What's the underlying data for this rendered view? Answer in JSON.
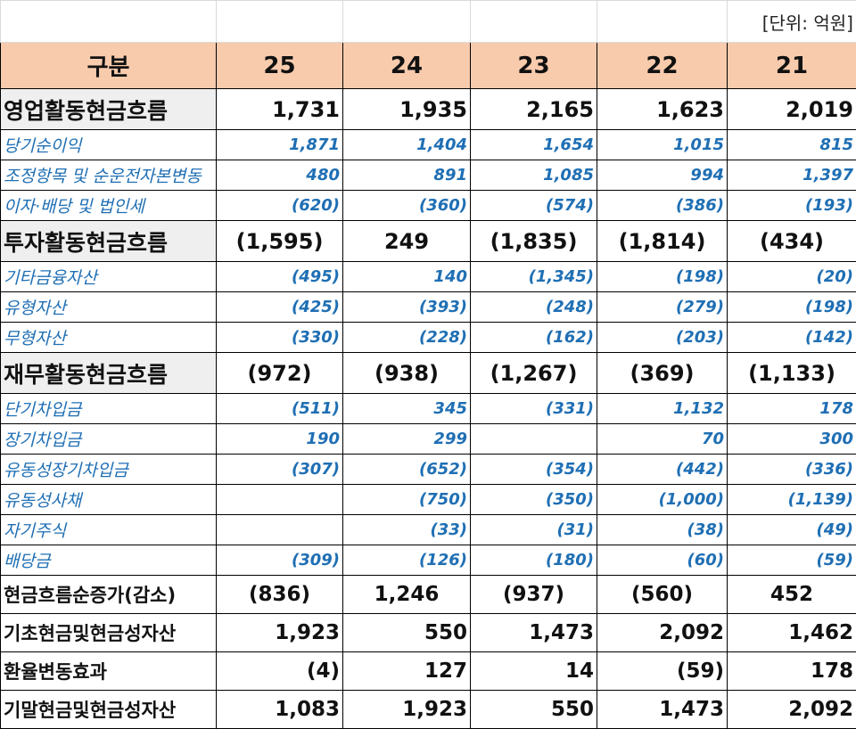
{
  "unit_label": "[단위: 억원]",
  "header": {
    "label": "구분",
    "years": [
      "25",
      "24",
      "23",
      "22",
      "21"
    ]
  },
  "rows": [
    {
      "kind": "major",
      "label": "영업활동현금흐름",
      "values": [
        "1,731",
        "1,935",
        "2,165",
        "1,623",
        "2,019"
      ],
      "neg": [
        false,
        false,
        false,
        false,
        false
      ]
    },
    {
      "kind": "minor",
      "label": "당기순이익",
      "values": [
        "1,871",
        "1,404",
        "1,654",
        "1,015",
        "815"
      ]
    },
    {
      "kind": "minor",
      "label": "조정항목 및 순운전자본변동",
      "values": [
        "480",
        "891",
        "1,085",
        "994",
        "1,397"
      ]
    },
    {
      "kind": "minor",
      "label": "이자·배당 및 법인세",
      "values": [
        "(620)",
        "(360)",
        "(574)",
        "(386)",
        "(193)"
      ]
    },
    {
      "kind": "major",
      "label": "투자활동현금흐름",
      "values": [
        "(1,595)",
        "249",
        "(1,835)",
        "(1,814)",
        "(434)"
      ],
      "neg": [
        true,
        false,
        true,
        true,
        true
      ]
    },
    {
      "kind": "minor",
      "label": "기타금융자산",
      "values": [
        "(495)",
        "140",
        "(1,345)",
        "(198)",
        "(20)"
      ]
    },
    {
      "kind": "minor",
      "label": "유형자산",
      "values": [
        "(425)",
        "(393)",
        "(248)",
        "(279)",
        "(198)"
      ]
    },
    {
      "kind": "minor",
      "label": "무형자산",
      "values": [
        "(330)",
        "(228)",
        "(162)",
        "(203)",
        "(142)"
      ]
    },
    {
      "kind": "major",
      "label": "재무활동현금흐름",
      "values": [
        "(972)",
        "(938)",
        "(1,267)",
        "(369)",
        "(1,133)"
      ],
      "neg": [
        true,
        true,
        true,
        true,
        true
      ]
    },
    {
      "kind": "minor",
      "label": "단기차입금",
      "values": [
        "(511)",
        "345",
        "(331)",
        "1,132",
        "178"
      ]
    },
    {
      "kind": "minor",
      "label": "장기차입금",
      "values": [
        "190",
        "299",
        "",
        "70",
        "300"
      ]
    },
    {
      "kind": "minor",
      "label": "유동성장기차입금",
      "values": [
        "(307)",
        "(652)",
        "(354)",
        "(442)",
        "(336)"
      ]
    },
    {
      "kind": "minor",
      "label": "유동성사채",
      "values": [
        "",
        "(750)",
        "(350)",
        "(1,000)",
        "(1,139)"
      ]
    },
    {
      "kind": "minor",
      "label": "자기주식",
      "values": [
        "",
        "(33)",
        "(31)",
        "(38)",
        "(49)"
      ]
    },
    {
      "kind": "minor",
      "label": "배당금",
      "values": [
        "(309)",
        "(126)",
        "(180)",
        "(60)",
        "(59)"
      ]
    },
    {
      "kind": "sum",
      "label": "현금흐름순증가(감소)",
      "values": [
        "(836)",
        "1,246",
        "(937)",
        "(560)",
        "452"
      ],
      "neg": [
        true,
        false,
        true,
        true,
        false
      ],
      "center": true
    },
    {
      "kind": "sum",
      "label": "기초현금및현금성자산",
      "values": [
        "1,923",
        "550",
        "1,473",
        "2,092",
        "1,462"
      ]
    },
    {
      "kind": "sum",
      "label": "환율변동효과",
      "values": [
        "(4)",
        "127",
        "14",
        "(59)",
        "178"
      ]
    },
    {
      "kind": "sum",
      "label": "기말현금및현금성자산",
      "values": [
        "1,083",
        "1,923",
        "550",
        "1,473",
        "2,092"
      ]
    }
  ],
  "colors": {
    "header_bg": "#f8cbad",
    "major_label_bg": "#efefef",
    "minor_text": "#1f6fb4",
    "negative_text": "#e60000"
  }
}
